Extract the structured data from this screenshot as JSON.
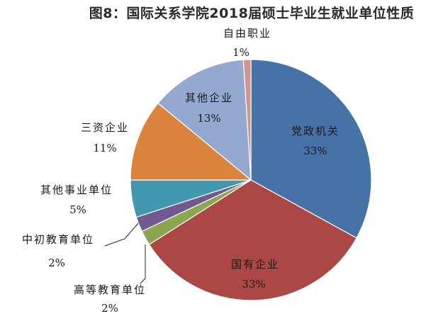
{
  "chart_data": {
    "type": "pie",
    "title": "图8：国际关系学院2018届硕士毕业生就业单位性质",
    "slices": [
      {
        "label": "党政机关",
        "value": 33,
        "value_label": "33%",
        "color": "#4672a8"
      },
      {
        "label": "国有企业",
        "value": 33,
        "value_label": "33%",
        "color": "#ab4744"
      },
      {
        "label": "高等教育单位",
        "value": 2,
        "value_label": "2%",
        "color": "#8aa64e"
      },
      {
        "label": "中初教育单位",
        "value": 2,
        "value_label": "2%",
        "color": "#71588f"
      },
      {
        "label": "其他事业单位",
        "value": 5,
        "value_label": "5%",
        "color": "#4298af"
      },
      {
        "label": "三资企业",
        "value": 11,
        "value_label": "11%",
        "color": "#db843d"
      },
      {
        "label": "其他企业",
        "value": 13,
        "value_label": "13%",
        "color": "#93a9cf"
      },
      {
        "label": "自由职业",
        "value": 1,
        "value_label": "1%",
        "color": "#d19392"
      }
    ]
  }
}
